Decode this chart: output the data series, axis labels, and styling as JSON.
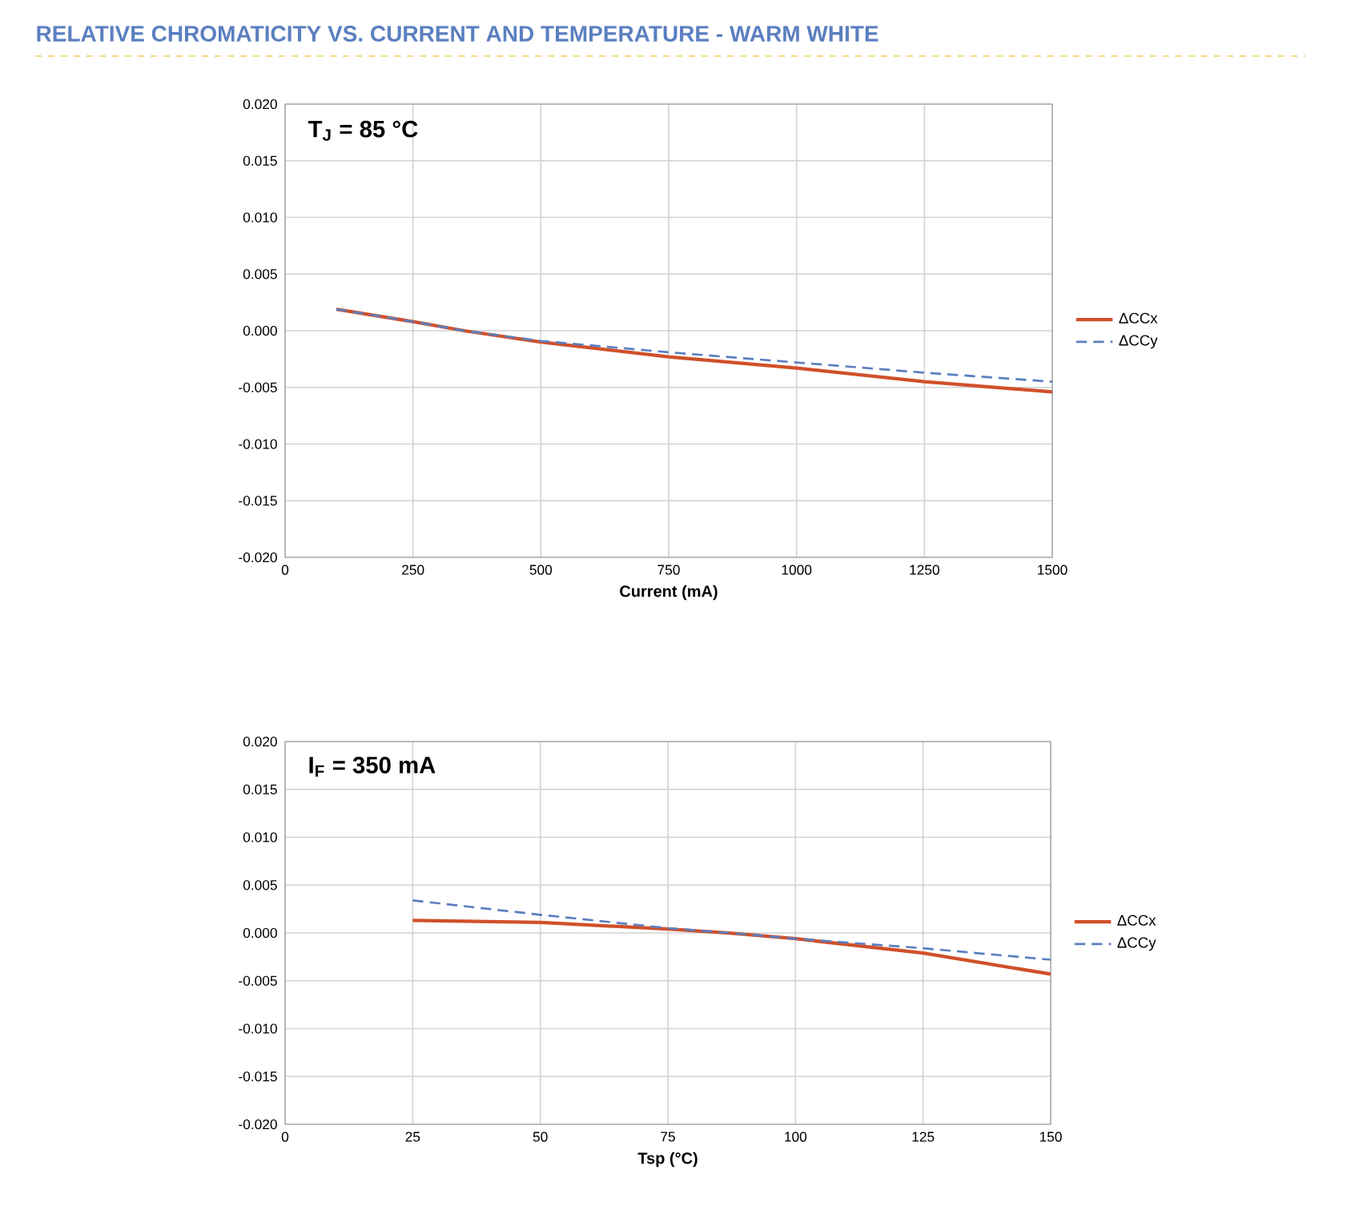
{
  "chart_data": [
    {
      "type": "line",
      "title": "RELATIVE CHROMATICITY VS. CURRENT AND TEMPERATURE - WARM WHITE",
      "xlabel": "Current (mA)",
      "annotations": [
        "T$_{J}$ = 85 °C"
      ],
      "xlim": [
        0,
        1500
      ],
      "xticks": [
        0,
        250,
        500,
        750,
        1000,
        1250,
        1500
      ],
      "ylim": [
        -0.02,
        0.02
      ],
      "yticks": [
        {
          "value": -0.02,
          "label": "-0.020"
        },
        {
          "value": -0.015,
          "label": "-0.015"
        },
        {
          "value": -0.01,
          "label": "-0.010"
        },
        {
          "value": -0.005,
          "label": "-0.005"
        },
        {
          "value": 0,
          "label": "0.000"
        },
        {
          "value": 0.005,
          "label": "0.005"
        },
        {
          "value": 0.01,
          "label": "0.010"
        },
        {
          "value": 0.015,
          "label": "0.015"
        },
        {
          "value": 0.02,
          "label": "0.020"
        }
      ],
      "grid": true,
      "legend": "right",
      "marker": "none",
      "series": [
        {
          "name": "ΔCCx",
          "color": "#d0502a",
          "line_style": "solid",
          "x": [
            100,
            250,
            350,
            500,
            750,
            1000,
            1250,
            1500
          ],
          "values": [
            0.0019,
            0.0008,
            0.0,
            -0.001,
            -0.0023,
            -0.0033,
            -0.0045,
            -0.0054
          ]
        },
        {
          "name": "ΔCCy",
          "color": "#5b7fc0",
          "line_style": "dashed",
          "x": [
            100,
            250,
            350,
            500,
            750,
            1000,
            1250,
            1500
          ],
          "values": [
            0.0019,
            0.0008,
            0.0,
            -0.0009,
            -0.0019,
            -0.0028,
            -0.0037,
            -0.0045
          ]
        }
      ]
    },
    {
      "type": "line",
      "xlabel": "Tsp (°C)",
      "annotations": [
        "I$_{F}$ = 350 mA"
      ],
      "xlim": [
        0,
        150
      ],
      "xticks": [
        0,
        25,
        50,
        75,
        100,
        125,
        150
      ],
      "ylim": [
        -0.02,
        0.02
      ],
      "yticks": [
        {
          "value": -0.02,
          "label": "-0.020"
        },
        {
          "value": -0.015,
          "label": "-0.015"
        },
        {
          "value": -0.01,
          "label": "-0.010"
        },
        {
          "value": -0.005,
          "label": "-0.005"
        },
        {
          "value": 0,
          "label": "0.000"
        },
        {
          "value": 0.005,
          "label": "0.005"
        },
        {
          "value": 0.01,
          "label": "0.010"
        },
        {
          "value": 0.015,
          "label": "0.015"
        },
        {
          "value": 0.02,
          "label": "0.020"
        }
      ],
      "grid": true,
      "legend": "right",
      "marker": "none",
      "series": [
        {
          "name": "ΔCCx",
          "color": "#d0502a",
          "line_style": "solid",
          "x": [
            25,
            50,
            75,
            87,
            100,
            125,
            150
          ],
          "values": [
            0.0013,
            0.0011,
            0.0004,
            0.0,
            -0.0006,
            -0.0021,
            -0.0043
          ]
        },
        {
          "name": "ΔCCy",
          "color": "#5b7fc0",
          "line_style": "dashed",
          "x": [
            25,
            50,
            75,
            87,
            100,
            125,
            150
          ],
          "values": [
            0.0034,
            0.0019,
            0.0005,
            0.0,
            -0.0006,
            -0.0016,
            -0.0028
          ]
        }
      ]
    }
  ]
}
